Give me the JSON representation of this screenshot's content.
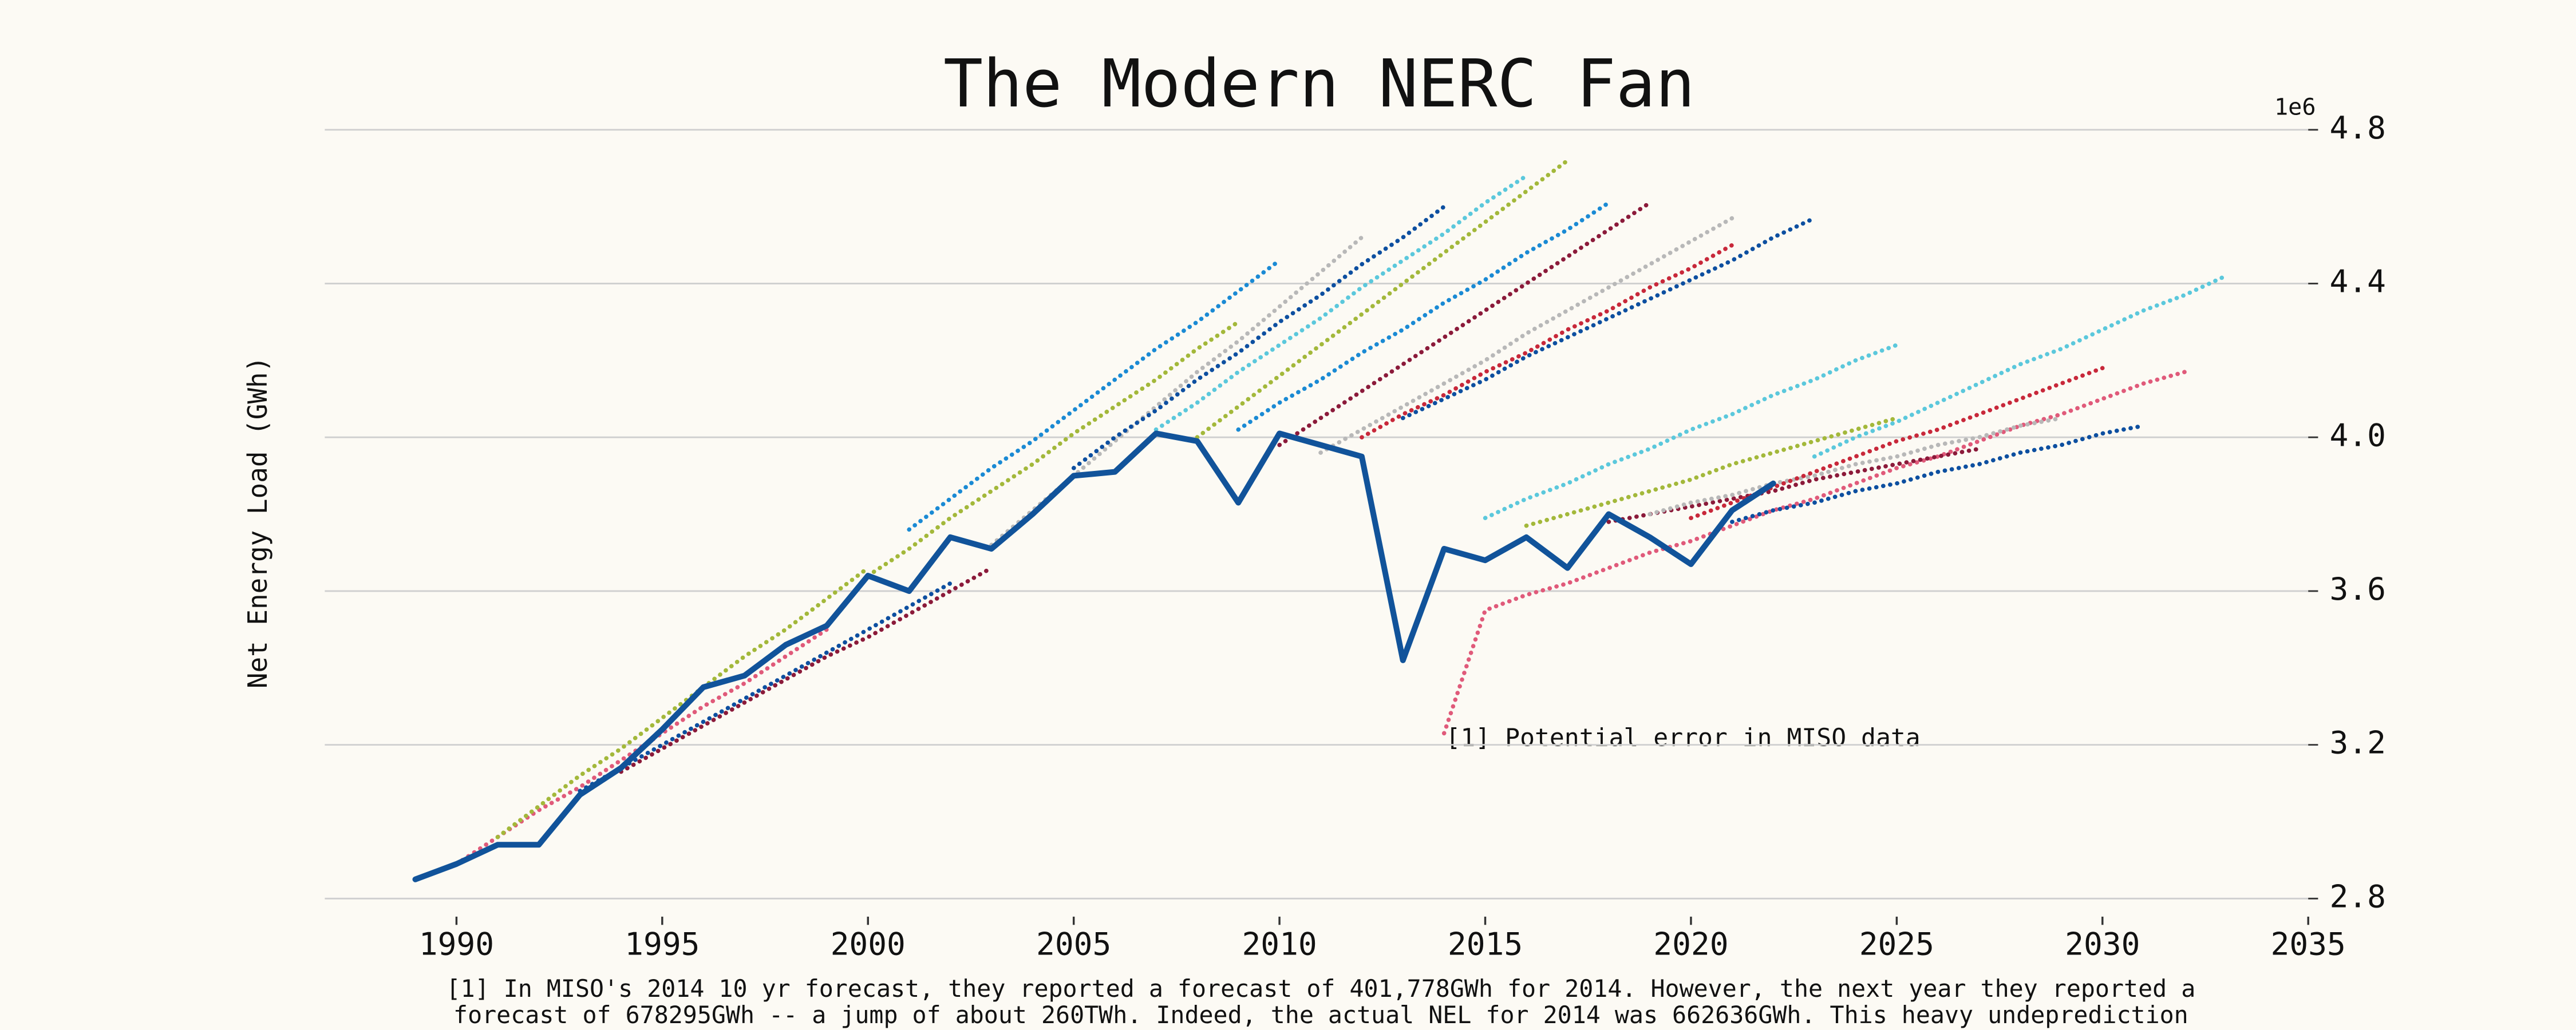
{
  "chart_data": {
    "type": "line",
    "title": "The Modern NERC Fan",
    "y_label": "Net Energy Load (GWh)",
    "y_offset_label": "1e6",
    "annotation": "[1] Potential error in MISO data",
    "footnote": [
      "[1] In MISO's 2014 10 yr forecast, they reported a forecast of 401,778GWh for 2014. However, the next year they reported a",
      "forecast of 678295GWh -- a jump of about 260TWh. Indeed, the actual NEL for 2014 was 662636GWh. This heavy undeprediction"
    ],
    "xlim": [
      1986.8,
      2035
    ],
    "xticks": [
      1990,
      1995,
      2000,
      2005,
      2010,
      2015,
      2020,
      2025,
      2030,
      2035
    ],
    "ylim": [
      2.8,
      4.8
    ],
    "yticks": [
      2.8,
      3.2,
      3.6,
      {
        "value": 4,
        "label": "4.0"
      },
      4.4,
      4.8
    ],
    "grid": true,
    "series": [
      {
        "color": "#e05a7a",
        "style": "dotted",
        "x": [
          1990,
          1991,
          1992,
          1993,
          1994,
          1995,
          1996,
          1997,
          1998,
          1999
        ],
        "values": [
          2.89,
          2.96,
          3.03,
          3.09,
          3.16,
          3.23,
          3.3,
          3.36,
          3.43,
          3.5
        ]
      },
      {
        "color": "#a3b83a",
        "style": "dotted",
        "x": [
          1991,
          1992,
          1993,
          1994,
          1995,
          1996,
          1997,
          1998,
          1999,
          2000
        ],
        "values": [
          2.96,
          3.04,
          3.12,
          3.19,
          3.27,
          3.35,
          3.43,
          3.5,
          3.58,
          3.66
        ]
      },
      {
        "color": "#0d4fa0",
        "style": "dotted",
        "x": [
          1993,
          1994,
          1995,
          1996,
          1997,
          1998,
          1999,
          2000,
          2001,
          2002
        ],
        "values": [
          3.08,
          3.14,
          3.2,
          3.26,
          3.32,
          3.38,
          3.44,
          3.5,
          3.56,
          3.62
        ]
      },
      {
        "color": "#8b1a3a",
        "style": "dotted",
        "x": [
          1994,
          1995,
          1996,
          1997,
          1998,
          1999,
          2000,
          2001,
          2002,
          2003
        ],
        "values": [
          3.13,
          3.19,
          3.25,
          3.31,
          3.37,
          3.43,
          3.48,
          3.54,
          3.6,
          3.66
        ]
      },
      {
        "color": "#a3b83a",
        "style": "dotted",
        "x": [
          2000,
          2001,
          2002,
          2003,
          2004,
          2005,
          2006,
          2007,
          2008,
          2009
        ],
        "values": [
          3.64,
          3.71,
          3.79,
          3.86,
          3.93,
          4.01,
          4.08,
          4.15,
          4.23,
          4.3
        ]
      },
      {
        "color": "#1a8ad4",
        "style": "dotted",
        "x": [
          2001,
          2002,
          2003,
          2004,
          2005,
          2006,
          2007,
          2008,
          2009,
          2010
        ],
        "values": [
          3.76,
          3.84,
          3.92,
          3.99,
          4.07,
          4.15,
          4.23,
          4.3,
          4.38,
          4.46
        ]
      },
      {
        "color": "#b8b8b8",
        "style": "dotted",
        "x": [
          2003,
          2004,
          2005,
          2006,
          2007,
          2008,
          2009,
          2010,
          2011,
          2012
        ],
        "values": [
          3.72,
          3.81,
          3.9,
          3.99,
          4.08,
          4.17,
          4.25,
          4.34,
          4.43,
          4.52
        ]
      },
      {
        "color": "#0d4fa0",
        "style": "dotted",
        "x": [
          2005,
          2006,
          2007,
          2008,
          2009,
          2010,
          2011,
          2012,
          2013,
          2014
        ],
        "values": [
          3.92,
          4.0,
          4.07,
          4.15,
          4.22,
          4.3,
          4.37,
          4.45,
          4.52,
          4.6
        ]
      },
      {
        "color": "#5bc8dc",
        "style": "dotted",
        "x": [
          2007,
          2008,
          2009,
          2010,
          2011,
          2012,
          2013,
          2014,
          2015,
          2016
        ],
        "values": [
          4.02,
          4.09,
          4.17,
          4.24,
          4.31,
          4.39,
          4.46,
          4.53,
          4.61,
          4.68
        ]
      },
      {
        "color": "#a3b83a",
        "style": "dotted",
        "x": [
          2008,
          2009,
          2010,
          2011,
          2012,
          2013,
          2014,
          2015,
          2016,
          2017
        ],
        "values": [
          4.0,
          4.08,
          4.16,
          4.24,
          4.32,
          4.4,
          4.48,
          4.56,
          4.64,
          4.72
        ]
      },
      {
        "color": "#1a8ad4",
        "style": "dotted",
        "x": [
          2009,
          2010,
          2011,
          2012,
          2013,
          2014,
          2015,
          2016,
          2017,
          2018
        ],
        "values": [
          4.02,
          4.09,
          4.15,
          4.22,
          4.28,
          4.35,
          4.41,
          4.48,
          4.54,
          4.61
        ]
      },
      {
        "color": "#8b1a3a",
        "style": "dotted",
        "x": [
          2010,
          2011,
          2012,
          2013,
          2014,
          2015,
          2016,
          2017,
          2018,
          2019
        ],
        "values": [
          3.98,
          4.05,
          4.12,
          4.19,
          4.26,
          4.33,
          4.4,
          4.47,
          4.54,
          4.61
        ]
      },
      {
        "color": "#b8b8b8",
        "style": "dotted",
        "x": [
          2011,
          2012,
          2013,
          2014,
          2015,
          2016,
          2017,
          2018,
          2019,
          2020,
          2021
        ],
        "values": [
          3.96,
          4.02,
          4.08,
          4.14,
          4.2,
          4.27,
          4.33,
          4.39,
          4.45,
          4.51,
          4.57
        ]
      },
      {
        "color": "#0d4fa0",
        "style": "dotted",
        "x": [
          2013,
          2014,
          2015,
          2016,
          2017,
          2018,
          2019,
          2020,
          2021,
          2022,
          2023
        ],
        "values": [
          4.05,
          4.1,
          4.15,
          4.21,
          4.26,
          4.31,
          4.36,
          4.41,
          4.46,
          4.52,
          4.57
        ]
      },
      {
        "color": "#c8283a",
        "style": "dotted",
        "x": [
          2012,
          2013,
          2014,
          2015,
          2016,
          2017,
          2018,
          2019,
          2020,
          2021
        ],
        "values": [
          4.0,
          4.06,
          4.11,
          4.17,
          4.22,
          4.28,
          4.33,
          4.39,
          4.44,
          4.5
        ]
      },
      {
        "color": "#e05a7a",
        "style": "dotted",
        "x": [
          2014,
          2015,
          2016,
          2017,
          2018,
          2019,
          2020,
          2021,
          2022,
          2023,
          2024,
          2025,
          2026,
          2027,
          2028,
          2029,
          2030,
          2031,
          2032
        ],
        "values": [
          3.23,
          3.55,
          3.59,
          3.62,
          3.66,
          3.7,
          3.73,
          3.77,
          3.81,
          3.84,
          3.88,
          3.92,
          3.95,
          3.99,
          4.03,
          4.06,
          4.1,
          4.14,
          4.17
        ]
      },
      {
        "color": "#5bc8dc",
        "style": "dotted",
        "x": [
          2015,
          2016,
          2017,
          2018,
          2019,
          2020,
          2021,
          2022,
          2023,
          2024,
          2025
        ],
        "values": [
          3.79,
          3.84,
          3.88,
          3.93,
          3.97,
          4.02,
          4.06,
          4.11,
          4.15,
          4.2,
          4.24
        ]
      },
      {
        "color": "#a3b83a",
        "style": "dotted",
        "x": [
          2016,
          2017,
          2018,
          2019,
          2020,
          2021,
          2022,
          2023,
          2024,
          2025
        ],
        "values": [
          3.77,
          3.8,
          3.83,
          3.86,
          3.89,
          3.93,
          3.96,
          3.99,
          4.02,
          4.05
        ]
      },
      {
        "color": "#8b1a3a",
        "style": "dotted",
        "x": [
          2018,
          2019,
          2020,
          2021,
          2022,
          2023,
          2024,
          2025,
          2026,
          2027
        ],
        "values": [
          3.78,
          3.8,
          3.82,
          3.84,
          3.86,
          3.89,
          3.91,
          3.93,
          3.95,
          3.97
        ]
      },
      {
        "color": "#b8b8b8",
        "style": "dotted",
        "x": [
          2019,
          2020,
          2021,
          2022,
          2023,
          2024,
          2025,
          2026,
          2027,
          2028,
          2029
        ],
        "values": [
          3.8,
          3.83,
          3.85,
          3.88,
          3.9,
          3.93,
          3.95,
          3.98,
          4.0,
          4.03,
          4.05
        ]
      },
      {
        "color": "#c8283a",
        "style": "dotted",
        "x": [
          2020,
          2021,
          2022,
          2023,
          2024,
          2025,
          2026,
          2027,
          2028,
          2029,
          2030
        ],
        "values": [
          3.79,
          3.83,
          3.87,
          3.91,
          3.95,
          3.99,
          4.02,
          4.06,
          4.1,
          4.14,
          4.18
        ]
      },
      {
        "color": "#0d4fa0",
        "style": "dotted",
        "x": [
          2021,
          2022,
          2023,
          2024,
          2025,
          2026,
          2027,
          2028,
          2029,
          2030,
          2031
        ],
        "values": [
          3.78,
          3.81,
          3.83,
          3.86,
          3.88,
          3.91,
          3.93,
          3.96,
          3.98,
          4.01,
          4.03
        ]
      },
      {
        "color": "#5bc8dc",
        "style": "dotted",
        "x": [
          2023,
          2024,
          2025,
          2026,
          2027,
          2028,
          2029,
          2030,
          2031,
          2032,
          2033
        ],
        "values": [
          3.95,
          4.0,
          4.04,
          4.09,
          4.14,
          4.19,
          4.23,
          4.28,
          4.33,
          4.37,
          4.42
        ]
      },
      {
        "color": "#11539a",
        "style": "solid",
        "x": [
          1989,
          1990,
          1991,
          1992,
          1993,
          1994,
          1995,
          1996,
          1997,
          1998,
          1999,
          2000,
          2001,
          2002,
          2003,
          2004,
          2005,
          2006,
          2007,
          2008,
          2009,
          2010,
          2011,
          2012,
          2013,
          2014,
          2015,
          2016,
          2017,
          2018,
          2019,
          2020,
          2021,
          2022
        ],
        "values": [
          2.85,
          2.89,
          2.94,
          2.94,
          3.07,
          3.14,
          3.24,
          3.35,
          3.38,
          3.46,
          3.51,
          3.64,
          3.6,
          3.74,
          3.71,
          3.8,
          3.9,
          3.91,
          4.01,
          3.99,
          3.83,
          4.01,
          3.98,
          3.95,
          3.42,
          3.71,
          3.68,
          3.74,
          3.66,
          3.8,
          3.74,
          3.67,
          3.81,
          3.88
        ]
      }
    ]
  }
}
